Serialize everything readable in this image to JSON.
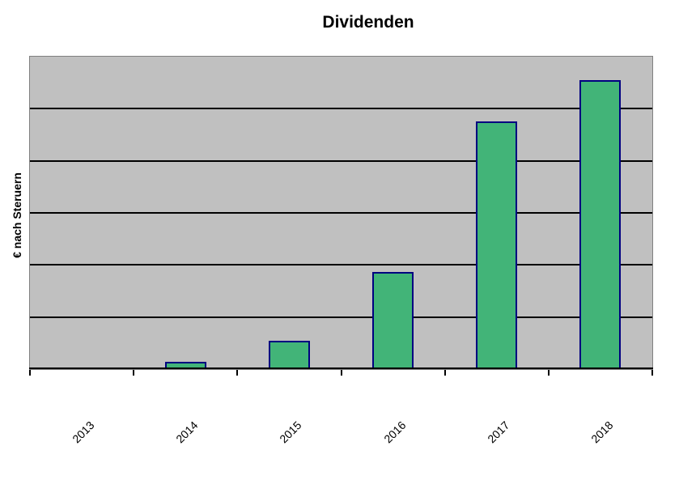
{
  "chart_data": {
    "type": "bar",
    "title": "Dividenden",
    "xlabel": "",
    "ylabel": "€ nach Steruern",
    "categories": [
      "2013",
      "2014",
      "2015",
      "2016",
      "2017",
      "2018"
    ],
    "values": [
      0.03,
      0.14,
      0.54,
      1.86,
      4.75,
      5.55
    ],
    "ylim": [
      0,
      6
    ],
    "y_gridline_step": 1,
    "y_tick_labels_visible": false,
    "x_label_rotation_deg": -45,
    "grid": "horizontal-major",
    "legend": "none",
    "colors": {
      "bar_fill": "#42B478",
      "bar_border": "#000080",
      "plot_background": "#C0C0C0",
      "plot_border": "#808080",
      "gridline": "#000000",
      "axis": "#000000",
      "page_background": "#FFFFFF",
      "text": "#000000"
    }
  }
}
